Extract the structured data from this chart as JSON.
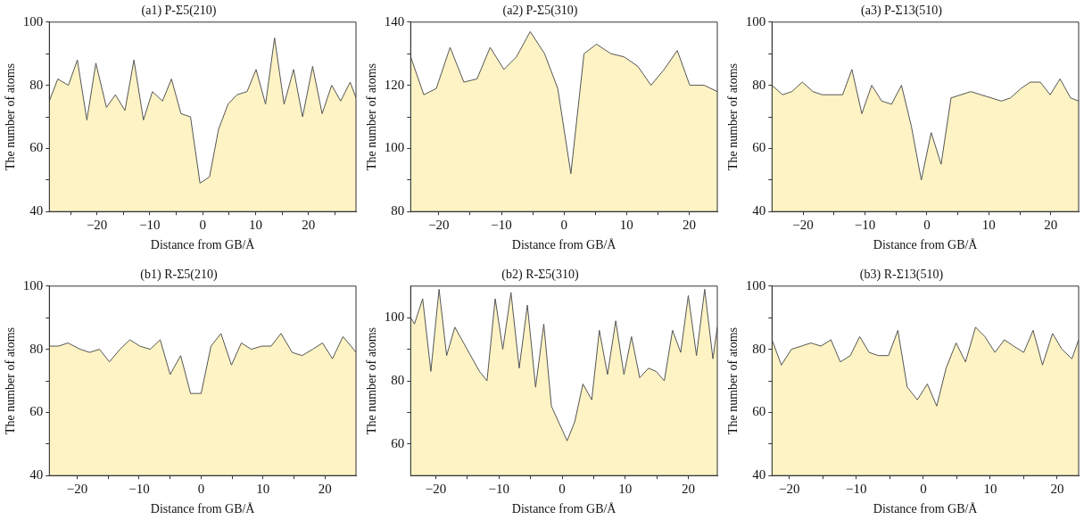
{
  "chart_data": [
    {
      "type": "area",
      "title": "(a1) P-Σ5(210)",
      "xlabel": "Distance from GB/Å",
      "ylabel": "The number of atoms",
      "xlim": [
        -29,
        29
      ],
      "ylim": [
        40,
        100
      ],
      "xticks": [
        {
          "value": -25,
          "label": null
        },
        -20,
        {
          "value": -15,
          "label": null
        },
        -10,
        {
          "value": -5,
          "label": null
        },
        0,
        {
          "value": 5,
          "label": null
        },
        10,
        {
          "value": 15,
          "label": null
        },
        20,
        {
          "value": 25,
          "label": null
        }
      ],
      "yticks": [
        40,
        {
          "value": 50,
          "label": null
        },
        60,
        {
          "value": 70,
          "label": null
        },
        80,
        {
          "value": 90,
          "label": null
        },
        100
      ],
      "grid": false,
      "series": [
        {
          "color": "#fdf3c4",
          "x": [
            -29,
            -27.4,
            -25.4,
            -23.7,
            -21.9,
            -20.2,
            -18.2,
            -16.5,
            -14.7,
            -13,
            -11.2,
            -9.5,
            -7.6,
            -5.9,
            -4.1,
            -2.3,
            -0.5,
            1.3,
            3,
            4.8,
            6.5,
            8.4,
            10.1,
            11.9,
            13.6,
            15.4,
            17.2,
            18.9,
            20.8,
            22.6,
            24.4,
            26.1,
            27.9,
            29
          ],
          "values": [
            75,
            82,
            80,
            88,
            69,
            87,
            73,
            77,
            72,
            88,
            69,
            78,
            75,
            82,
            71,
            70,
            49,
            51,
            66,
            74,
            77,
            78,
            85,
            74,
            95,
            74,
            85,
            70,
            86,
            71,
            80,
            75,
            81,
            76
          ]
        }
      ]
    },
    {
      "type": "area",
      "title": "(a2) P-Σ5(310)",
      "xlabel": "Distance from GB/Å",
      "ylabel": "The number of atoms",
      "xlim": [
        -24.5,
        24.5
      ],
      "ylim": [
        80,
        140
      ],
      "xticks": [
        -20,
        {
          "value": -15,
          "label": null
        },
        -10,
        {
          "value": -5,
          "label": null
        },
        0,
        {
          "value": 5,
          "label": null
        },
        10,
        {
          "value": 15,
          "label": null
        },
        20
      ],
      "yticks": [
        80,
        {
          "value": 90,
          "label": null
        },
        100,
        {
          "value": 110,
          "label": null
        },
        120,
        {
          "value": 130,
          "label": null
        },
        140
      ],
      "grid": false,
      "series": [
        {
          "color": "#fdf3c4",
          "x": [
            -24.5,
            -22.4,
            -20.4,
            -18.2,
            -16,
            -13.9,
            -11.8,
            -9.6,
            -7.6,
            -5.4,
            -3.1,
            -1,
            1.1,
            3.2,
            5.2,
            7.5,
            9.6,
            11.8,
            13.9,
            16,
            18.1,
            20.1,
            22.4,
            24.5
          ],
          "values": [
            129,
            117,
            119,
            132,
            121,
            122,
            132,
            125,
            129,
            137,
            130,
            119,
            92,
            130,
            133,
            130,
            129,
            126,
            120,
            125,
            131,
            120,
            120,
            118
          ]
        }
      ]
    },
    {
      "type": "area",
      "title": "(a3) P-Σ13(510)",
      "xlabel": "Distance from GB/Å",
      "ylabel": "The number of atoms",
      "xlim": [
        -25,
        24.5
      ],
      "ylim": [
        40,
        100
      ],
      "xticks": [
        -20,
        {
          "value": -15,
          "label": null
        },
        -10,
        {
          "value": -5,
          "label": null
        },
        0,
        {
          "value": 5,
          "label": null
        },
        10,
        {
          "value": 15,
          "label": null
        },
        20
      ],
      "yticks": [
        40,
        {
          "value": 50,
          "label": null
        },
        60,
        {
          "value": 70,
          "label": null
        },
        80,
        {
          "value": 90,
          "label": null
        },
        100
      ],
      "grid": false,
      "series": [
        {
          "color": "#fdf3c4",
          "x": [
            -25,
            -23.3,
            -21.8,
            -20.1,
            -18.4,
            -16.9,
            -15.3,
            -13.6,
            -12.1,
            -10.5,
            -8.9,
            -7.3,
            -5.7,
            -4.1,
            -2.5,
            -0.9,
            0.7,
            2.3,
            3.9,
            5.5,
            7.1,
            8.7,
            10.4,
            12,
            13.5,
            15.2,
            16.7,
            18.3,
            19.9,
            21.5,
            23.2,
            24.5
          ],
          "values": [
            80,
            77,
            78,
            81,
            78,
            77,
            77,
            77,
            85,
            71,
            80,
            75,
            74,
            80,
            67,
            50,
            65,
            55,
            76,
            77,
            78,
            77,
            76,
            75,
            76,
            79,
            81,
            81,
            77,
            82,
            76,
            75
          ]
        }
      ]
    },
    {
      "type": "area",
      "title": "(b1) R-Σ5(210)",
      "xlabel": "Distance from GB/Å",
      "ylabel": "The number of atoms",
      "xlim": [
        -24.5,
        25
      ],
      "ylim": [
        40,
        100
      ],
      "xticks": [
        -20,
        {
          "value": -15,
          "label": null
        },
        -10,
        {
          "value": -5,
          "label": null
        },
        0,
        {
          "value": 5,
          "label": null
        },
        10,
        {
          "value": 15,
          "label": null
        },
        20
      ],
      "yticks": [
        40,
        {
          "value": 50,
          "label": null
        },
        60,
        {
          "value": 70,
          "label": null
        },
        80,
        {
          "value": 90,
          "label": null
        },
        100
      ],
      "grid": false,
      "series": [
        {
          "color": "#fdf3c4",
          "x": [
            -24.5,
            -23,
            -21.5,
            -19.5,
            -18,
            -16.4,
            -14.8,
            -13.1,
            -11.5,
            -9.9,
            -8.2,
            -6.6,
            -5,
            -3.3,
            -1.7,
            0,
            1.6,
            3.2,
            4.9,
            6.5,
            8.1,
            9.8,
            11.3,
            12.9,
            14.7,
            16.3,
            18,
            19.6,
            21.2,
            22.9,
            24.2,
            25
          ],
          "values": [
            81,
            81,
            82,
            80,
            79,
            80,
            76,
            80,
            83,
            81,
            80,
            83,
            72,
            78,
            66,
            66,
            81,
            85,
            75,
            82,
            80,
            81,
            81,
            85,
            79,
            78,
            80,
            82,
            77,
            84,
            81,
            79
          ]
        }
      ]
    },
    {
      "type": "area",
      "title": "(b2) R-Σ5(310)",
      "xlabel": "Distance from GB/Å",
      "ylabel": "The number of atoms",
      "xlim": [
        -24,
        24.6
      ],
      "ylim": [
        50,
        110
      ],
      "xticks": [
        -20,
        {
          "value": -15,
          "label": null
        },
        -10,
        {
          "value": -5,
          "label": null
        },
        0,
        {
          "value": 5,
          "label": null
        },
        10,
        {
          "value": 15,
          "label": null
        },
        20
      ],
      "yticks": [
        60,
        {
          "value": 70,
          "label": null
        },
        80,
        {
          "value": 90,
          "label": null
        },
        100
      ],
      "grid": false,
      "series": [
        {
          "color": "#fdf3c4",
          "x": [
            -24,
            -23.4,
            -22.1,
            -20.8,
            -19.5,
            -18.3,
            -17,
            -13.1,
            -11.9,
            -10.6,
            -9.4,
            -8.1,
            -6.8,
            -5.5,
            -4.2,
            -2.9,
            -1.7,
            0.8,
            2,
            3.3,
            4.7,
            5.9,
            7.2,
            8.5,
            9.8,
            11,
            12.3,
            13.7,
            14.9,
            16.2,
            17.5,
            18.8,
            20,
            21.3,
            22.6,
            23.9,
            24.6
          ],
          "values": [
            100,
            98,
            106,
            83,
            109,
            88,
            97,
            83,
            80,
            106,
            90,
            108,
            84,
            104,
            78,
            98,
            72,
            61,
            67,
            79,
            74,
            96,
            82,
            99,
            82,
            94,
            81,
            84,
            83,
            80,
            96,
            89,
            107,
            88,
            109,
            87,
            97
          ]
        }
      ]
    },
    {
      "type": "area",
      "title": "(b3) R-Σ13(510)",
      "xlabel": "Distance from GB/Å",
      "ylabel": "The number of atoms",
      "xlim": [
        -22.6,
        23.2
      ],
      "ylim": [
        40,
        100
      ],
      "xticks": [
        -20,
        {
          "value": -15,
          "label": null
        },
        -10,
        {
          "value": -5,
          "label": null
        },
        0,
        {
          "value": 5,
          "label": null
        },
        10,
        {
          "value": 15,
          "label": null
        },
        20
      ],
      "yticks": [
        40,
        {
          "value": 50,
          "label": null
        },
        60,
        {
          "value": 70,
          "label": null
        },
        80,
        {
          "value": 90,
          "label": null
        },
        100
      ],
      "grid": false,
      "series": [
        {
          "color": "#fdf3c4",
          "x": [
            -22.6,
            -21.2,
            -19.7,
            -18.2,
            -16.8,
            -15.3,
            -13.8,
            -12.4,
            -10.9,
            -9.5,
            -8.1,
            -6.7,
            -5.2,
            -3.8,
            -2.4,
            -0.9,
            0.6,
            2,
            3.4,
            4.9,
            6.3,
            7.8,
            9.2,
            10.7,
            12.1,
            13.5,
            15,
            16.4,
            17.8,
            19.3,
            20.7,
            22.2,
            23.2
          ],
          "values": [
            83,
            75,
            80,
            81,
            82,
            81,
            83,
            76,
            78,
            84,
            79,
            78,
            78,
            86,
            68,
            64,
            69,
            62,
            74,
            82,
            76,
            87,
            84,
            79,
            83,
            81,
            79,
            86,
            75,
            85,
            80,
            77,
            83
          ]
        }
      ]
    }
  ]
}
